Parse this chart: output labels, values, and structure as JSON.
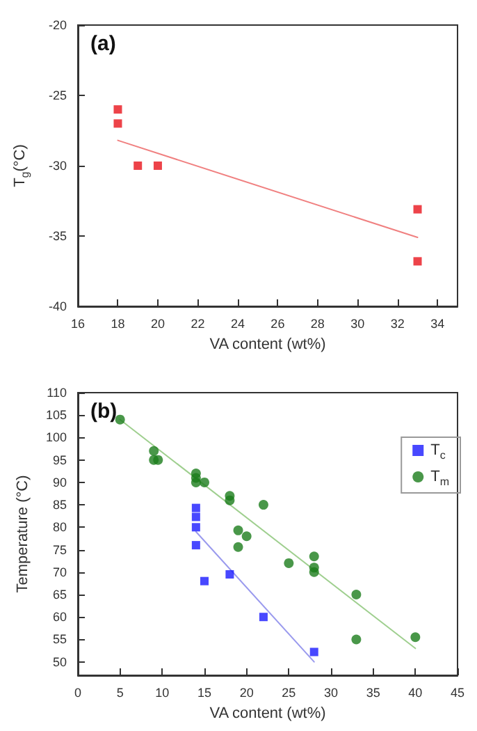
{
  "chart_data": [
    {
      "type": "scatter",
      "title": "(a)",
      "xlabel": "VA content (wt%)",
      "ylabel": "T$_{g}$(°C)",
      "xlim": [
        16,
        35
      ],
      "xticks": [
        16,
        18,
        20,
        22,
        24,
        26,
        28,
        30,
        32,
        34
      ],
      "ylim": [
        -40,
        -20
      ],
      "yticks": [
        -40,
        -35,
        -30,
        -25,
        -20
      ],
      "grid": false,
      "legend": false,
      "series": [
        {
          "marker": "square",
          "color": "#e8141c",
          "x": [
            18,
            18,
            19,
            20,
            33,
            33
          ],
          "values": [
            -26,
            -27,
            -30,
            -30,
            -33.1,
            -36.8
          ]
        },
        {
          "type": "line",
          "marker": "none",
          "line_style": "solid",
          "color": "#f08080",
          "x": [
            18,
            33
          ],
          "values": [
            -28.2,
            -35.1
          ]
        }
      ]
    },
    {
      "type": "scatter",
      "title": "(b)",
      "xlabel": "VA content (wt%)",
      "ylabel": "Temperature (°C)",
      "xlim": [
        0,
        45
      ],
      "xticks": [
        0,
        5,
        10,
        15,
        20,
        25,
        30,
        35,
        40,
        45
      ],
      "ylim": [
        47,
        110
      ],
      "yticks": [
        50,
        55,
        60,
        65,
        70,
        75,
        80,
        85,
        90,
        95,
        100,
        105,
        110
      ],
      "grid": false,
      "legend": "top right",
      "series": [
        {
          "name": "T$_{c}$",
          "marker": "square",
          "color": "#1a1aff",
          "x": [
            14,
            14,
            14,
            14,
            15,
            18,
            22,
            28
          ],
          "values": [
            84.3,
            82.3,
            80,
            76,
            68,
            69.5,
            60,
            52.2
          ]
        },
        {
          "name": "T$_{m}$",
          "marker": "circle",
          "color": "#1b7d1b",
          "x": [
            5,
            9,
            9,
            9.5,
            14,
            14,
            14,
            15,
            18,
            18,
            22,
            19,
            20,
            19,
            25,
            28,
            28,
            28,
            33,
            33,
            40
          ],
          "values": [
            104,
            97,
            95,
            95,
            92,
            91,
            90,
            90,
            87,
            86,
            85,
            79.3,
            78,
            75.6,
            72,
            73.5,
            71,
            70,
            65,
            55,
            55.5
          ]
        },
        {
          "type": "line",
          "marker": "none",
          "line_style": "solid",
          "color": "#9a9aee",
          "x": [
            14,
            28
          ],
          "values": [
            79,
            50
          ]
        },
        {
          "type": "line",
          "marker": "none",
          "line_style": "solid",
          "color": "#9fcf8f",
          "x": [
            5,
            40
          ],
          "values": [
            104,
            53
          ]
        }
      ]
    }
  ]
}
